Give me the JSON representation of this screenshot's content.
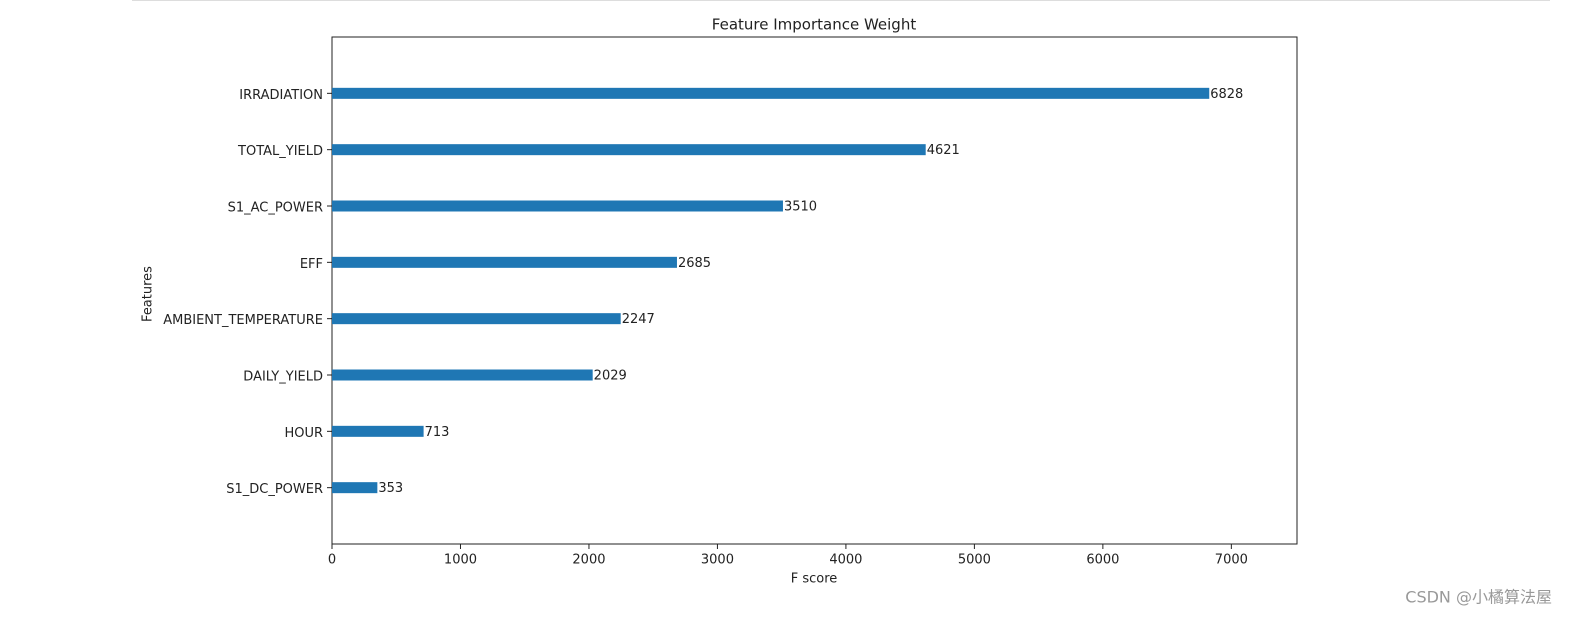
{
  "chart_data": {
    "type": "bar",
    "orientation": "horizontal",
    "title": "Feature Importance Weight",
    "xlabel": "F score",
    "ylabel": "Features",
    "categories": [
      "IRRADIATION",
      "TOTAL_YIELD",
      "S1_AC_POWER",
      "EFF",
      "AMBIENT_TEMPERATURE",
      "DAILY_YIELD",
      "HOUR",
      "S1_DC_POWER"
    ],
    "values": [
      6828,
      4621,
      3510,
      2685,
      2247,
      2029,
      713,
      353
    ],
    "color": "#1f77b4",
    "xlim": [
      0,
      7511
    ],
    "xticks": [
      0,
      1000,
      2000,
      3000,
      4000,
      5000,
      6000,
      7000
    ]
  },
  "watermark": "CSDN @小橘算法屋"
}
